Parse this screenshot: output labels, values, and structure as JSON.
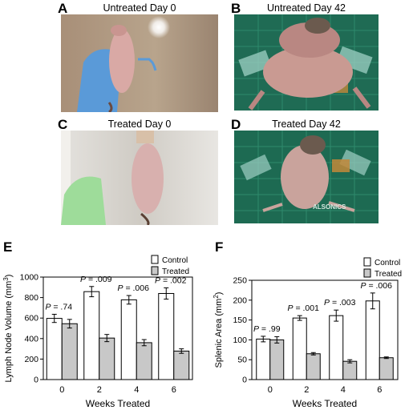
{
  "figure": {
    "panels": [
      {
        "letter": "A",
        "title": "Untreated Day 0"
      },
      {
        "letter": "B",
        "title": "Untreated Day 42"
      },
      {
        "letter": "C",
        "title": "Treated Day 0"
      },
      {
        "letter": "D",
        "title": "Treated Day 42"
      },
      {
        "letter": "E"
      },
      {
        "letter": "F"
      }
    ],
    "photo_text": "ALSONICS"
  },
  "chart_data": [
    {
      "type": "bar",
      "panel": "E",
      "categories": [
        "0",
        "2",
        "4",
        "6"
      ],
      "series": [
        {
          "name": "Control",
          "values": [
            597,
            858,
            778,
            840
          ],
          "errors": [
            40,
            50,
            42,
            55
          ],
          "color": "#ffffff"
        },
        {
          "name": "Treated",
          "values": [
            545,
            405,
            360,
            278
          ],
          "errors": [
            42,
            35,
            30,
            22
          ],
          "color": "#c8c8c8"
        }
      ],
      "p_values": [
        "P = .74",
        "P = .009",
        "P = .006",
        "P = .002"
      ],
      "xlabel": "Weeks Treated",
      "ylabel": "Lymph Node Volume (mm3)",
      "ylim": [
        0,
        1000
      ],
      "yticks": [
        "0",
        "200",
        "400",
        "600",
        "800",
        "1000"
      ],
      "legend_position": "top-right",
      "grid": false
    },
    {
      "type": "bar",
      "panel": "F",
      "categories": [
        "0",
        "2",
        "4",
        "6"
      ],
      "series": [
        {
          "name": "Control",
          "values": [
            102,
            155,
            161,
            198
          ],
          "errors": [
            7,
            6,
            14,
            20
          ],
          "color": "#ffffff"
        },
        {
          "name": "Treated",
          "values": [
            100,
            65,
            46,
            55
          ],
          "errors": [
            8,
            3,
            4,
            2
          ],
          "color": "#c8c8c8"
        }
      ],
      "p_values": [
        "P = .99",
        "P = .001",
        "P = .003",
        "P = .006"
      ],
      "xlabel": "Weeks Treated",
      "ylabel": "Splenic Area (mm2)",
      "ylim": [
        0,
        250
      ],
      "yticks": [
        "0",
        "50",
        "100",
        "150",
        "200",
        "250"
      ],
      "legend_position": "top-right",
      "grid": false
    }
  ]
}
